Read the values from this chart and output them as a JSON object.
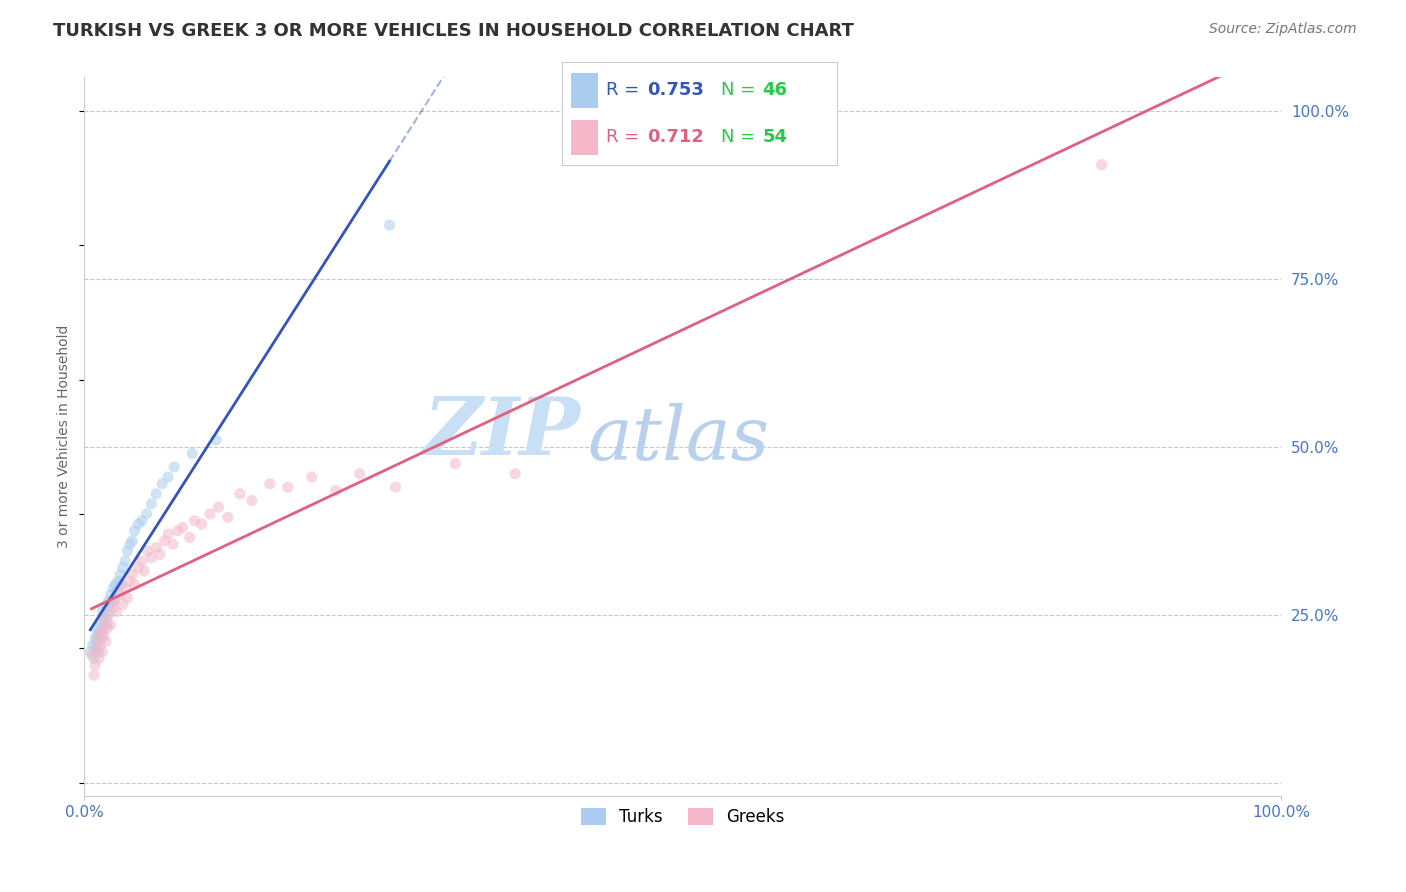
{
  "title": "TURKISH VS GREEK 3 OR MORE VEHICLES IN HOUSEHOLD CORRELATION CHART",
  "source": "Source: ZipAtlas.com",
  "ylabel": "3 or more Vehicles in Household",
  "xlim": [
    0,
    1.0
  ],
  "ylim": [
    -0.02,
    1.05
  ],
  "ytick_labels": [
    "",
    "25.0%",
    "50.0%",
    "75.0%",
    "100.0%"
  ],
  "ytick_values": [
    0.0,
    0.25,
    0.5,
    0.75,
    1.0
  ],
  "grid_color": "#c8c8c8",
  "background_color": "#ffffff",
  "turks_color": "#aaccee",
  "greeks_color": "#f4b8c8",
  "turks_line_color": "#3355bb",
  "greeks_line_color": "#e06080",
  "turks_R": 0.753,
  "turks_N": 46,
  "greeks_R": 0.712,
  "greeks_N": 54,
  "N_color": "#22cc44",
  "marker_size": 65,
  "marker_alpha": 0.55,
  "title_fontsize": 13,
  "axis_label_fontsize": 10,
  "tick_fontsize": 11,
  "watermark_zip_color": "#c8dff5",
  "watermark_atlas_color": "#b8d0ee"
}
